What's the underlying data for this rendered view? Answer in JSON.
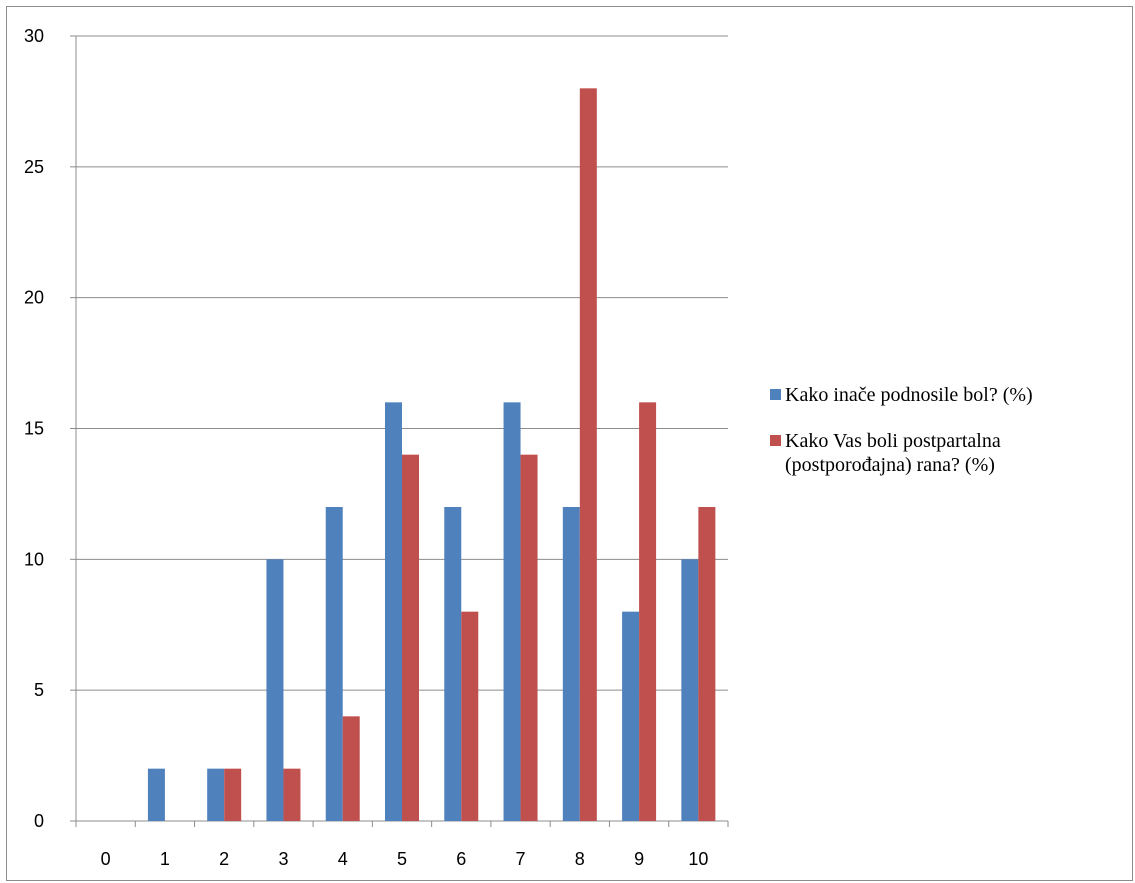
{
  "chart_data": {
    "type": "bar",
    "categories": [
      "0",
      "1",
      "2",
      "3",
      "4",
      "5",
      "6",
      "7",
      "8",
      "9",
      "10"
    ],
    "series": [
      {
        "name": "Kako inače podnosile bol? (%)",
        "values": [
          0,
          2,
          2,
          10,
          12,
          16,
          12,
          16,
          12,
          8,
          10
        ],
        "color": "#4f81bd"
      },
      {
        "name": "Kako Vas boli postpartalna (postporođajna) rana? (%)",
        "values": [
          0,
          0,
          2,
          2,
          4,
          14,
          8,
          14,
          28,
          16,
          12
        ],
        "color": "#c0504d"
      }
    ],
    "ylim": [
      0,
      30
    ],
    "yticks": [
      "0",
      "5",
      "10",
      "15",
      "20",
      "25",
      "30"
    ],
    "grid": true,
    "legend_position": "right",
    "title": "",
    "xlabel": "",
    "ylabel": ""
  }
}
